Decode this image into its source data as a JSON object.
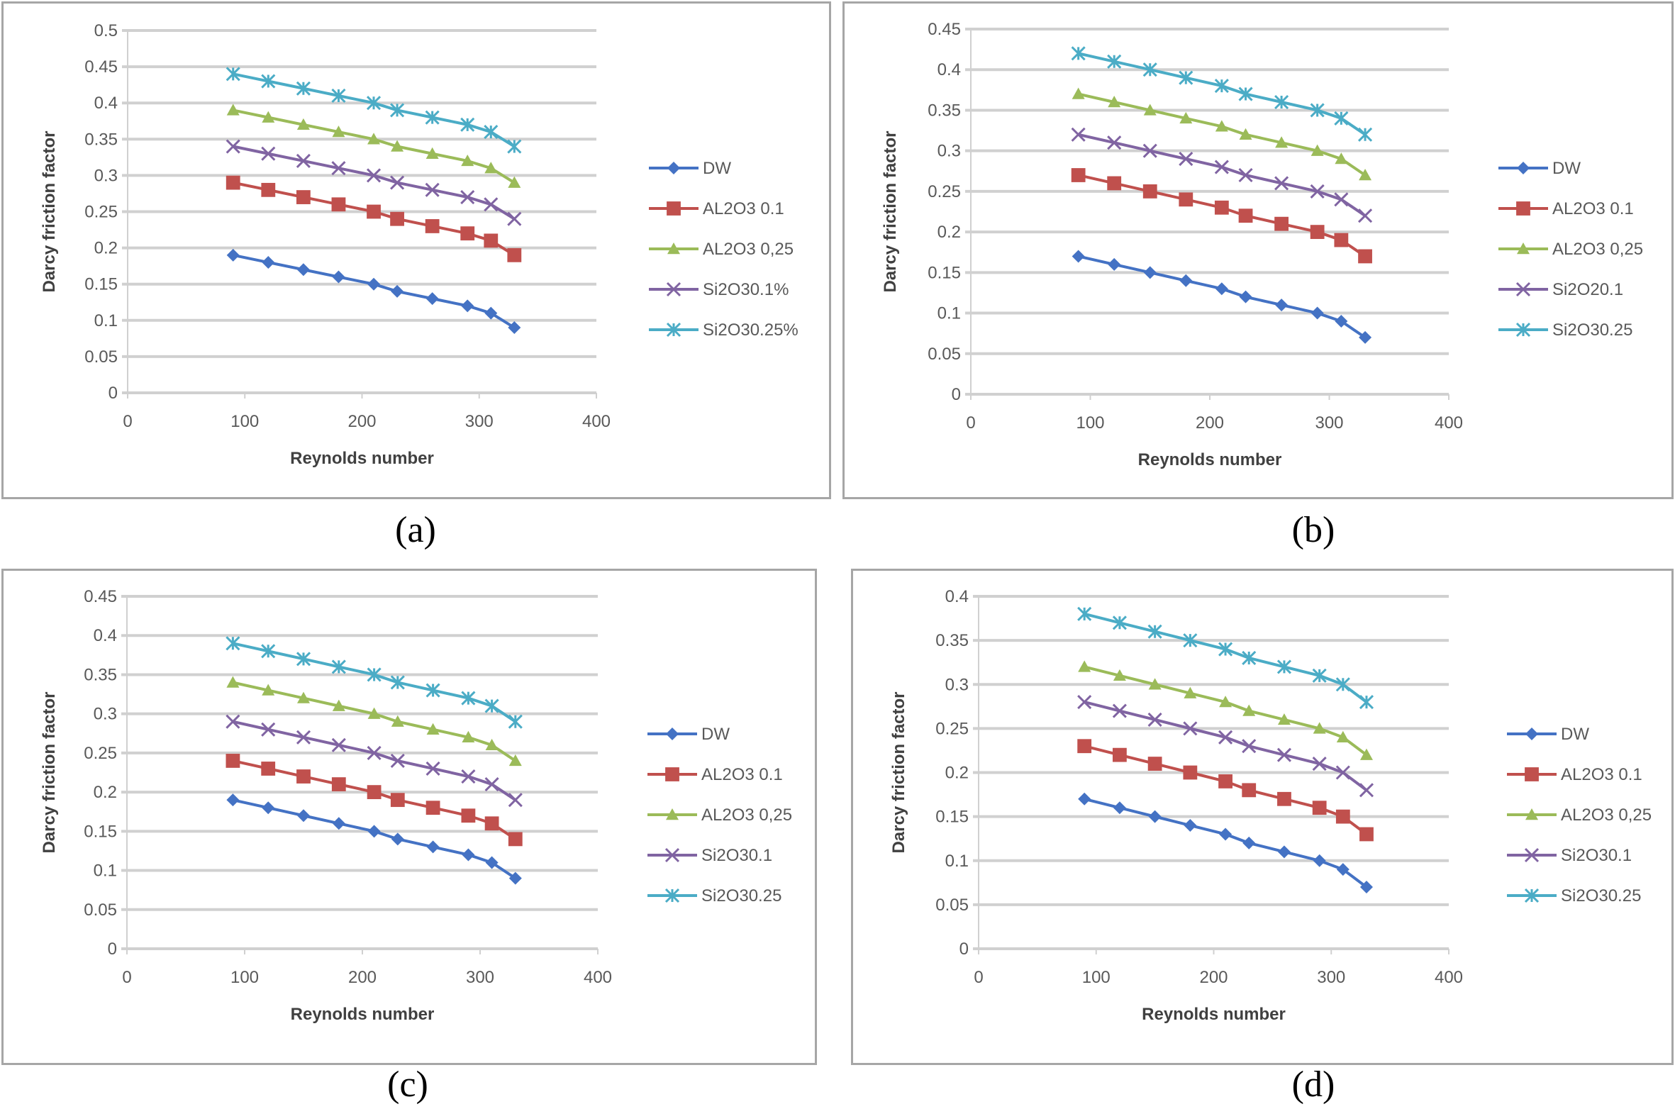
{
  "captions": [
    "(a)",
    "(b)",
    "(c)",
    "(d)"
  ],
  "series_colors": {
    "DW": "#4472c4",
    "AL2O3_0.1": "#c0504d",
    "AL2O3_0.25": "#9bbb59",
    "Si2O3_0.1": "#8064a2",
    "Si2O3_0.25": "#4bacc6"
  },
  "chart_data": [
    {
      "id": "a",
      "type": "line",
      "title": "",
      "xlabel": "Reynolds number",
      "ylabel": "Darcy friction factor",
      "xlim": [
        0,
        400
      ],
      "ylim": [
        0,
        0.5
      ],
      "xticks": [
        "0",
        "100",
        "200",
        "300",
        "400"
      ],
      "yticks": [
        "0",
        "0.05",
        "0.1",
        "0.15",
        "0.2",
        "0.25",
        "0.3",
        "0.35",
        "0.4",
        "0.45",
        "0.5"
      ],
      "grid": true,
      "legend_position": "right",
      "x": [
        90,
        120,
        150,
        180,
        210,
        230,
        260,
        290,
        310,
        330
      ],
      "series": [
        {
          "name": "DW",
          "marker": "diamond",
          "color_key": "DW",
          "values": [
            0.19,
            0.18,
            0.17,
            0.16,
            0.15,
            0.14,
            0.13,
            0.12,
            0.11,
            0.09
          ]
        },
        {
          "name": "AL2O3 0.1",
          "marker": "square",
          "color_key": "AL2O3_0.1",
          "values": [
            0.29,
            0.28,
            0.27,
            0.26,
            0.25,
            0.24,
            0.23,
            0.22,
            0.21,
            0.19
          ]
        },
        {
          "name": "AL2O3 0,25",
          "marker": "triangle",
          "color_key": "AL2O3_0.25",
          "values": [
            0.39,
            0.38,
            0.37,
            0.36,
            0.35,
            0.34,
            0.33,
            0.32,
            0.31,
            0.29
          ]
        },
        {
          "name": "Si2O30.1%",
          "marker": "x",
          "color_key": "Si2O3_0.1",
          "values": [
            0.34,
            0.33,
            0.32,
            0.31,
            0.3,
            0.29,
            0.28,
            0.27,
            0.26,
            0.24
          ]
        },
        {
          "name": "Si2O30.25%",
          "marker": "star",
          "color_key": "Si2O3_0.25",
          "values": [
            0.44,
            0.43,
            0.42,
            0.41,
            0.4,
            0.39,
            0.38,
            0.37,
            0.36,
            0.34
          ]
        }
      ]
    },
    {
      "id": "b",
      "type": "line",
      "title": "",
      "xlabel": "Reynolds number",
      "ylabel": "Darcy friction factor",
      "xlim": [
        0,
        400
      ],
      "ylim": [
        0,
        0.45
      ],
      "xticks": [
        "0",
        "100",
        "200",
        "300",
        "400"
      ],
      "yticks": [
        "0",
        "0.05",
        "0.1",
        "0.15",
        "0.2",
        "0.25",
        "0.3",
        "0.35",
        "0.4",
        "0.45"
      ],
      "grid": true,
      "legend_position": "right",
      "x": [
        90,
        120,
        150,
        180,
        210,
        230,
        260,
        290,
        310,
        330
      ],
      "series": [
        {
          "name": "DW",
          "marker": "diamond",
          "color_key": "DW",
          "values": [
            0.17,
            0.16,
            0.15,
            0.14,
            0.13,
            0.12,
            0.11,
            0.1,
            0.09,
            0.07
          ]
        },
        {
          "name": "AL2O3 0.1",
          "marker": "square",
          "color_key": "AL2O3_0.1",
          "values": [
            0.27,
            0.26,
            0.25,
            0.24,
            0.23,
            0.22,
            0.21,
            0.2,
            0.19,
            0.17
          ]
        },
        {
          "name": "AL2O3 0,25",
          "marker": "triangle",
          "color_key": "AL2O3_0.25",
          "values": [
            0.37,
            0.36,
            0.35,
            0.34,
            0.33,
            0.32,
            0.31,
            0.3,
            0.29,
            0.27
          ]
        },
        {
          "name": "Si2O20.1",
          "marker": "x",
          "color_key": "Si2O3_0.1",
          "values": [
            0.32,
            0.31,
            0.3,
            0.29,
            0.28,
            0.27,
            0.26,
            0.25,
            0.24,
            0.22
          ]
        },
        {
          "name": "Si2O30.25",
          "marker": "star",
          "color_key": "Si2O3_0.25",
          "values": [
            0.42,
            0.41,
            0.4,
            0.39,
            0.38,
            0.37,
            0.36,
            0.35,
            0.34,
            0.32
          ]
        }
      ]
    },
    {
      "id": "c",
      "type": "line",
      "title": "",
      "xlabel": "Reynolds number",
      "ylabel": "Darcy friction factor",
      "xlim": [
        0,
        400
      ],
      "ylim": [
        0,
        0.45
      ],
      "xticks": [
        "0",
        "100",
        "200",
        "300",
        "400"
      ],
      "yticks": [
        "0",
        "0.05",
        "0.1",
        "0.15",
        "0.2",
        "0.25",
        "0.3",
        "0.35",
        "0.4",
        "0.45"
      ],
      "grid": true,
      "legend_position": "right",
      "x": [
        90,
        120,
        150,
        180,
        210,
        230,
        260,
        290,
        310,
        330
      ],
      "series": [
        {
          "name": "DW",
          "marker": "diamond",
          "color_key": "DW",
          "values": [
            0.19,
            0.18,
            0.17,
            0.16,
            0.15,
            0.14,
            0.13,
            0.12,
            0.11,
            0.09
          ]
        },
        {
          "name": "AL2O3 0.1",
          "marker": "square",
          "color_key": "AL2O3_0.1",
          "values": [
            0.24,
            0.23,
            0.22,
            0.21,
            0.2,
            0.19,
            0.18,
            0.17,
            0.16,
            0.14
          ]
        },
        {
          "name": "AL2O3 0,25",
          "marker": "triangle",
          "color_key": "AL2O3_0.25",
          "values": [
            0.34,
            0.33,
            0.32,
            0.31,
            0.3,
            0.29,
            0.28,
            0.27,
            0.26,
            0.24
          ]
        },
        {
          "name": "Si2O30.1",
          "marker": "x",
          "color_key": "Si2O3_0.1",
          "values": [
            0.29,
            0.28,
            0.27,
            0.26,
            0.25,
            0.24,
            0.23,
            0.22,
            0.21,
            0.19
          ]
        },
        {
          "name": "Si2O30.25",
          "marker": "star",
          "color_key": "Si2O3_0.25",
          "values": [
            0.39,
            0.38,
            0.37,
            0.36,
            0.35,
            0.34,
            0.33,
            0.32,
            0.31,
            0.29
          ]
        }
      ]
    },
    {
      "id": "d",
      "type": "line",
      "title": "",
      "xlabel": "Reynolds number",
      "ylabel": "Darcy friction factor",
      "xlim": [
        0,
        400
      ],
      "ylim": [
        0,
        0.4
      ],
      "xticks": [
        "0",
        "100",
        "200",
        "300",
        "400"
      ],
      "yticks": [
        "0",
        "0.05",
        "0.1",
        "0.15",
        "0.2",
        "0.25",
        "0.3",
        "0.35",
        "0.4"
      ],
      "grid": true,
      "legend_position": "right",
      "x": [
        90,
        120,
        150,
        180,
        210,
        230,
        260,
        290,
        310,
        330
      ],
      "series": [
        {
          "name": "DW",
          "marker": "diamond",
          "color_key": "DW",
          "values": [
            0.17,
            0.16,
            0.15,
            0.14,
            0.13,
            0.12,
            0.11,
            0.1,
            0.09,
            0.07
          ]
        },
        {
          "name": "AL2O3 0.1",
          "marker": "square",
          "color_key": "AL2O3_0.1",
          "values": [
            0.23,
            0.22,
            0.21,
            0.2,
            0.19,
            0.18,
            0.17,
            0.16,
            0.15,
            0.13
          ]
        },
        {
          "name": "AL2O3 0,25",
          "marker": "triangle",
          "color_key": "AL2O3_0.25",
          "values": [
            0.32,
            0.31,
            0.3,
            0.29,
            0.28,
            0.27,
            0.26,
            0.25,
            0.24,
            0.22
          ]
        },
        {
          "name": "Si2O30.1",
          "marker": "x",
          "color_key": "Si2O3_0.1",
          "values": [
            0.28,
            0.27,
            0.26,
            0.25,
            0.24,
            0.23,
            0.22,
            0.21,
            0.2,
            0.18
          ]
        },
        {
          "name": "Si2O30.25",
          "marker": "star",
          "color_key": "Si2O3_0.25",
          "values": [
            0.38,
            0.37,
            0.36,
            0.35,
            0.34,
            0.33,
            0.32,
            0.31,
            0.3,
            0.28
          ]
        }
      ]
    }
  ]
}
